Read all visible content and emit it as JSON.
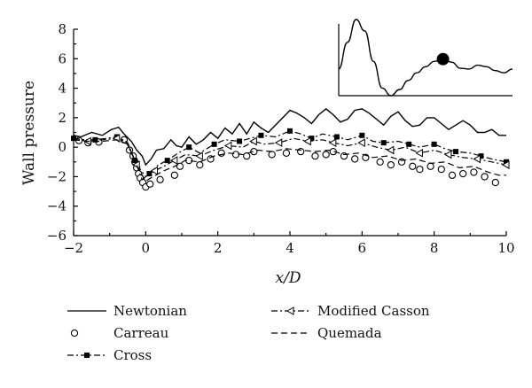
{
  "chart_data": {
    "type": "line",
    "xlabel": "x/D",
    "ylabel": "Wall pressure",
    "xlim": [
      -2,
      10
    ],
    "ylim": [
      -6,
      8
    ],
    "xticks": [
      "−2",
      "0",
      "2",
      "4",
      "6",
      "8",
      "10"
    ],
    "yticks": [
      "−6",
      "−4",
      "−2",
      "0",
      "2",
      "4",
      "6",
      "8"
    ],
    "grid": false,
    "legend_placement": "bottom",
    "series": [
      {
        "name": "Newtonian",
        "style": "solid",
        "color": "#000000",
        "x": [
          -2.0,
          -1.8,
          -1.5,
          -1.2,
          -0.95,
          -0.75,
          -0.6,
          -0.4,
          -0.25,
          -0.1,
          0.0,
          0.15,
          0.3,
          0.5,
          0.7,
          0.85,
          1.0,
          1.2,
          1.4,
          1.6,
          1.8,
          2.0,
          2.2,
          2.4,
          2.6,
          2.8,
          3.0,
          3.2,
          3.4,
          3.6,
          3.8,
          4.0,
          4.2,
          4.4,
          4.6,
          4.8,
          5.0,
          5.2,
          5.4,
          5.6,
          5.8,
          6.0,
          6.2,
          6.4,
          6.6,
          6.8,
          7.0,
          7.2,
          7.4,
          7.6,
          7.8,
          8.0,
          8.2,
          8.4,
          8.6,
          8.8,
          9.0,
          9.2,
          9.4,
          9.6,
          9.8,
          10.0
        ],
        "y": [
          0.8,
          0.7,
          1.0,
          0.8,
          1.2,
          1.35,
          0.9,
          0.4,
          -0.2,
          -0.6,
          -1.2,
          -0.8,
          -0.2,
          -0.1,
          0.5,
          0.1,
          0.0,
          0.7,
          0.2,
          0.5,
          1.0,
          0.6,
          1.3,
          0.9,
          1.6,
          0.9,
          1.7,
          1.3,
          1.0,
          1.5,
          2.0,
          2.5,
          2.3,
          2.0,
          1.6,
          2.2,
          2.6,
          2.2,
          1.7,
          1.9,
          2.5,
          2.6,
          2.3,
          1.9,
          1.5,
          2.1,
          2.4,
          1.8,
          1.4,
          1.5,
          2.0,
          2.0,
          1.6,
          1.2,
          1.5,
          1.8,
          1.5,
          1.0,
          1.0,
          1.2,
          0.8,
          0.8
        ]
      },
      {
        "name": "Carreau",
        "style": "circles",
        "color": "#000000",
        "x": [
          -1.85,
          -1.6,
          -1.3,
          -0.6,
          -0.45,
          -0.35,
          -0.3,
          -0.25,
          -0.2,
          -0.15,
          -0.08,
          0.0,
          0.12,
          0.4,
          0.8,
          0.95,
          1.2,
          1.5,
          1.8,
          2.1,
          2.5,
          2.8,
          3.0,
          3.5,
          3.9,
          4.3,
          4.7,
          5.0,
          5.2,
          5.5,
          5.8,
          6.1,
          6.5,
          6.8,
          7.1,
          7.4,
          7.6,
          7.9,
          8.2,
          8.5,
          8.8,
          9.1,
          9.4,
          9.7
        ],
        "y": [
          0.45,
          0.3,
          0.35,
          0.5,
          -0.2,
          -0.6,
          -1.0,
          -1.4,
          -1.8,
          -2.1,
          -2.4,
          -2.7,
          -2.5,
          -2.2,
          -1.9,
          -1.3,
          -0.9,
          -1.2,
          -0.8,
          -0.4,
          -0.5,
          -0.6,
          -0.3,
          -0.5,
          -0.4,
          -0.3,
          -0.6,
          -0.5,
          -0.3,
          -0.6,
          -0.8,
          -0.7,
          -1.0,
          -1.2,
          -1.0,
          -1.3,
          -1.5,
          -1.3,
          -1.5,
          -1.9,
          -1.8,
          -1.7,
          -2.0,
          -2.4
        ]
      },
      {
        "name": "Cross",
        "style": "dashdot-square",
        "color": "#000000",
        "x": [
          -2.0,
          -1.7,
          -1.4,
          -1.1,
          -0.8,
          -0.55,
          -0.3,
          -0.1,
          0.1,
          0.35,
          0.6,
          0.9,
          1.2,
          1.5,
          1.9,
          2.2,
          2.6,
          2.9,
          3.2,
          3.6,
          4.0,
          4.3,
          4.6,
          4.9,
          5.3,
          5.6,
          6.0,
          6.3,
          6.6,
          7.0,
          7.3,
          7.6,
          8.0,
          8.3,
          8.6,
          9.0,
          9.3,
          9.6,
          10.0
        ],
        "y": [
          0.6,
          0.5,
          0.5,
          0.6,
          0.7,
          0.4,
          -0.9,
          -2.2,
          -1.8,
          -1.2,
          -0.9,
          -0.4,
          0.0,
          -0.4,
          0.2,
          0.5,
          0.4,
          0.6,
          0.8,
          0.7,
          1.1,
          0.9,
          0.6,
          0.9,
          0.7,
          0.5,
          0.8,
          0.4,
          0.3,
          0.4,
          0.2,
          0.0,
          0.2,
          -0.1,
          -0.3,
          -0.4,
          -0.6,
          -0.8,
          -1.0
        ]
      },
      {
        "name": "Modified Casson",
        "style": "dashdot-triangle",
        "color": "#000000",
        "x": [
          -2.0,
          -1.6,
          -1.2,
          -0.8,
          -0.5,
          -0.25,
          0.0,
          0.25,
          0.5,
          0.8,
          1.1,
          1.5,
          1.9,
          2.3,
          2.7,
          3.0,
          3.3,
          3.7,
          4.1,
          4.5,
          4.9,
          5.2,
          5.6,
          6.0,
          6.4,
          6.8,
          7.2,
          7.6,
          8.0,
          8.4,
          8.8,
          9.2,
          9.6,
          10.0
        ],
        "y": [
          0.6,
          0.4,
          0.5,
          0.6,
          0.3,
          -1.2,
          -2.0,
          -1.6,
          -1.3,
          -0.9,
          -0.5,
          -0.6,
          -0.2,
          0.1,
          0.0,
          0.4,
          0.2,
          0.3,
          0.6,
          0.4,
          0.5,
          0.3,
          0.1,
          0.3,
          0.0,
          -0.2,
          0.0,
          -0.4,
          -0.2,
          -0.5,
          -0.7,
          -0.8,
          -1.0,
          -1.2
        ]
      },
      {
        "name": "Quemada",
        "style": "dashed",
        "color": "#000000",
        "x": [
          -2.0,
          -1.6,
          -1.2,
          -0.8,
          -0.5,
          -0.2,
          0.0,
          0.2,
          0.5,
          0.8,
          1.1,
          1.5,
          1.9,
          2.3,
          2.7,
          3.1,
          3.5,
          3.9,
          4.3,
          4.7,
          5.1,
          5.5,
          5.9,
          6.3,
          6.7,
          7.1,
          7.5,
          7.9,
          8.3,
          8.7,
          9.1,
          9.5,
          9.8,
          10.0
        ],
        "y": [
          0.5,
          0.4,
          0.4,
          0.5,
          0.2,
          -1.5,
          -2.3,
          -2.0,
          -1.6,
          -1.3,
          -0.9,
          -1.0,
          -0.6,
          -0.4,
          -0.5,
          -0.2,
          -0.3,
          -0.1,
          -0.2,
          -0.3,
          -0.2,
          -0.5,
          -0.4,
          -0.7,
          -0.6,
          -0.9,
          -0.8,
          -1.1,
          -1.0,
          -1.4,
          -1.3,
          -1.7,
          -1.9,
          -1.9
        ]
      }
    ],
    "inset": {
      "type": "line",
      "description_free": true,
      "x": [
        0,
        1,
        2,
        3,
        4,
        5,
        6,
        7,
        8,
        9,
        10,
        11,
        12,
        13,
        14,
        15,
        16,
        17,
        18,
        19,
        20
      ],
      "y": [
        0.35,
        0.7,
        1.0,
        0.85,
        0.45,
        0.1,
        0.0,
        0.08,
        0.2,
        0.3,
        0.38,
        0.45,
        0.48,
        0.44,
        0.36,
        0.35,
        0.4,
        0.38,
        0.33,
        0.3,
        0.35
      ],
      "marker_index": 12
    }
  }
}
